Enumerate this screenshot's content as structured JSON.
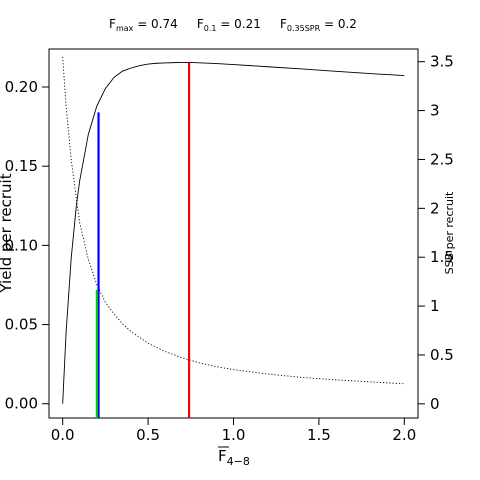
{
  "chart_data": {
    "type": "line",
    "title_parts": [
      {
        "main": "F",
        "sub": "max",
        "rest": " = 0.74"
      },
      {
        "main": "F",
        "sub": "0.1",
        "rest": " = 0.21"
      },
      {
        "main": "F",
        "sub": "0.35SPR",
        "rest": " = 0.2"
      }
    ],
    "xlabel": {
      "main": "F",
      "sub": "4−8"
    },
    "ylabel_left": "Yield per recruit",
    "ylabel_right": "SSB per recruit",
    "xlim": [
      -0.08,
      2.08
    ],
    "ylim_left": [
      -0.009,
      0.224
    ],
    "ylim_right": [
      -0.145,
      3.63
    ],
    "x_ticks": [
      {
        "value": 0.0,
        "label": "0.0"
      },
      {
        "value": 0.5,
        "label": "0.5"
      },
      {
        "value": 1.0,
        "label": "1.0"
      },
      {
        "value": 1.5,
        "label": "1.5"
      },
      {
        "value": 2.0,
        "label": "2.0"
      }
    ],
    "y_left_ticks": [
      {
        "value": 0.0,
        "label": "0.00"
      },
      {
        "value": 0.05,
        "label": "0.05"
      },
      {
        "value": 0.1,
        "label": "0.10"
      },
      {
        "value": 0.15,
        "label": "0.15"
      },
      {
        "value": 0.2,
        "label": "0.20"
      }
    ],
    "y_right_ticks": [
      {
        "value": 0.0,
        "label": "0"
      },
      {
        "value": 0.5,
        "label": "0.5"
      },
      {
        "value": 1.0,
        "label": "1"
      },
      {
        "value": 1.5,
        "label": "1.5"
      },
      {
        "value": 2.0,
        "label": "2"
      },
      {
        "value": 2.5,
        "label": "2.5"
      },
      {
        "value": 3.0,
        "label": "3"
      },
      {
        "value": 3.5,
        "label": "3.5"
      }
    ],
    "series": [
      {
        "axis": "left",
        "style": "solid",
        "color": "#000000",
        "x": [
          0,
          0.02,
          0.05,
          0.08,
          0.1,
          0.15,
          0.2,
          0.25,
          0.3,
          0.35,
          0.4,
          0.45,
          0.5,
          0.55,
          0.6,
          0.65,
          0.7,
          0.74,
          0.8,
          0.9,
          1.0,
          1.1,
          1.2,
          1.4,
          1.6,
          1.8,
          2.0
        ],
        "y": [
          0,
          0.045,
          0.092,
          0.125,
          0.141,
          0.17,
          0.188,
          0.199,
          0.206,
          0.21,
          0.212,
          0.2135,
          0.2145,
          0.215,
          0.2152,
          0.2154,
          0.2155,
          0.2155,
          0.2153,
          0.2148,
          0.2142,
          0.2135,
          0.2128,
          0.2114,
          0.2099,
          0.2085,
          0.2072
        ]
      },
      {
        "axis": "right",
        "style": "dotted",
        "color": "#000000",
        "x": [
          0,
          0.02,
          0.05,
          0.08,
          0.1,
          0.15,
          0.2,
          0.25,
          0.3,
          0.35,
          0.4,
          0.5,
          0.6,
          0.7,
          0.8,
          0.9,
          1.0,
          1.2,
          1.4,
          1.6,
          1.8,
          2.0
        ],
        "y": [
          3.55,
          3.05,
          2.5,
          2.1,
          1.85,
          1.48,
          1.22,
          1.04,
          0.92,
          0.82,
          0.74,
          0.62,
          0.535,
          0.47,
          0.42,
          0.38,
          0.35,
          0.305,
          0.27,
          0.245,
          0.225,
          0.205
        ]
      }
    ],
    "reference_lines": [
      {
        "name": "F_max",
        "x": 0.74,
        "y_top": 0.2155,
        "color": "#ff0000"
      },
      {
        "name": "F_0.1",
        "x": 0.21,
        "y_top": 0.184,
        "color": "#0000ff"
      },
      {
        "name": "F_0.35SPR",
        "x": 0.2,
        "y_top": 0.072,
        "color": "#00cc00"
      }
    ]
  }
}
